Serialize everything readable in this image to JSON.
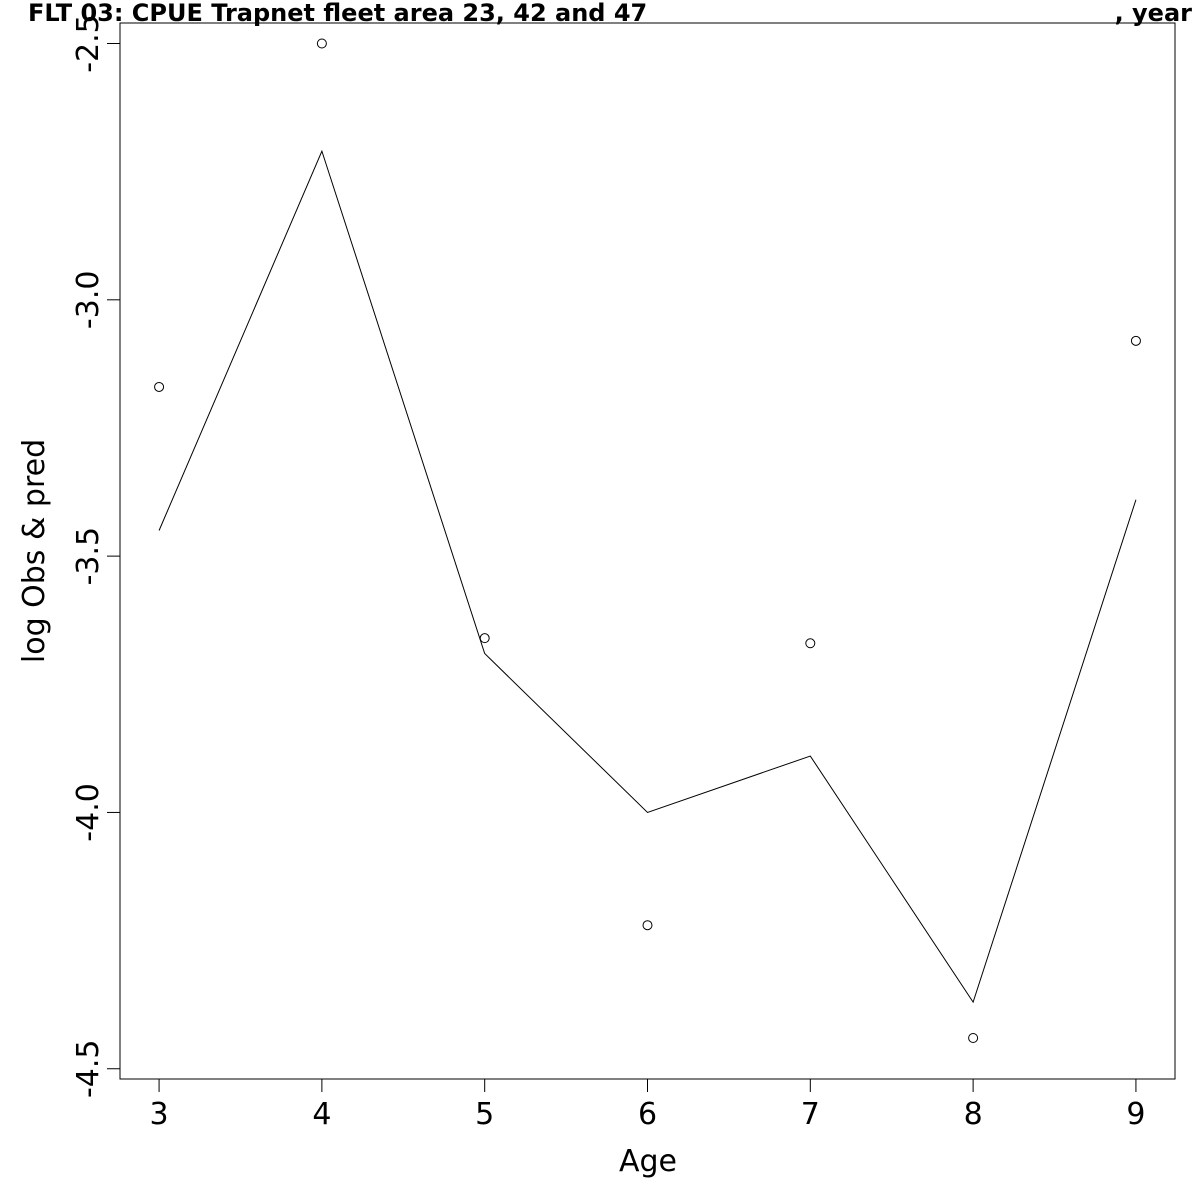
{
  "chart_data": {
    "type": "line",
    "title": "FLT 03: CPUE Trapnet fleet area 23, 42 and 47",
    "title_right": ", year",
    "xlabel": "Age",
    "ylabel": "log Obs & pred",
    "x": [
      3,
      4,
      5,
      6,
      7,
      8,
      9
    ],
    "xticks": [
      "3",
      "4",
      "5",
      "6",
      "7",
      "8",
      "9"
    ],
    "yticks": [
      "-2.5",
      "-3.0",
      "-3.5",
      "-4.0",
      "-4.5"
    ],
    "ytick_values": [
      -2.5,
      -3.0,
      -3.5,
      -4.0,
      -4.5
    ],
    "xlim": [
      2.76,
      9.24
    ],
    "ylim": [
      -4.52,
      -2.46
    ],
    "grid": false,
    "series": [
      {
        "role": "observed",
        "style": "points",
        "values": [
          -3.17,
          -2.5,
          -3.66,
          -4.22,
          -3.67,
          -4.44,
          -3.08
        ]
      },
      {
        "role": "predicted",
        "style": "line",
        "values": [
          -3.45,
          -2.71,
          -3.69,
          -4.0,
          -3.89,
          -4.37,
          -3.39
        ]
      }
    ]
  }
}
